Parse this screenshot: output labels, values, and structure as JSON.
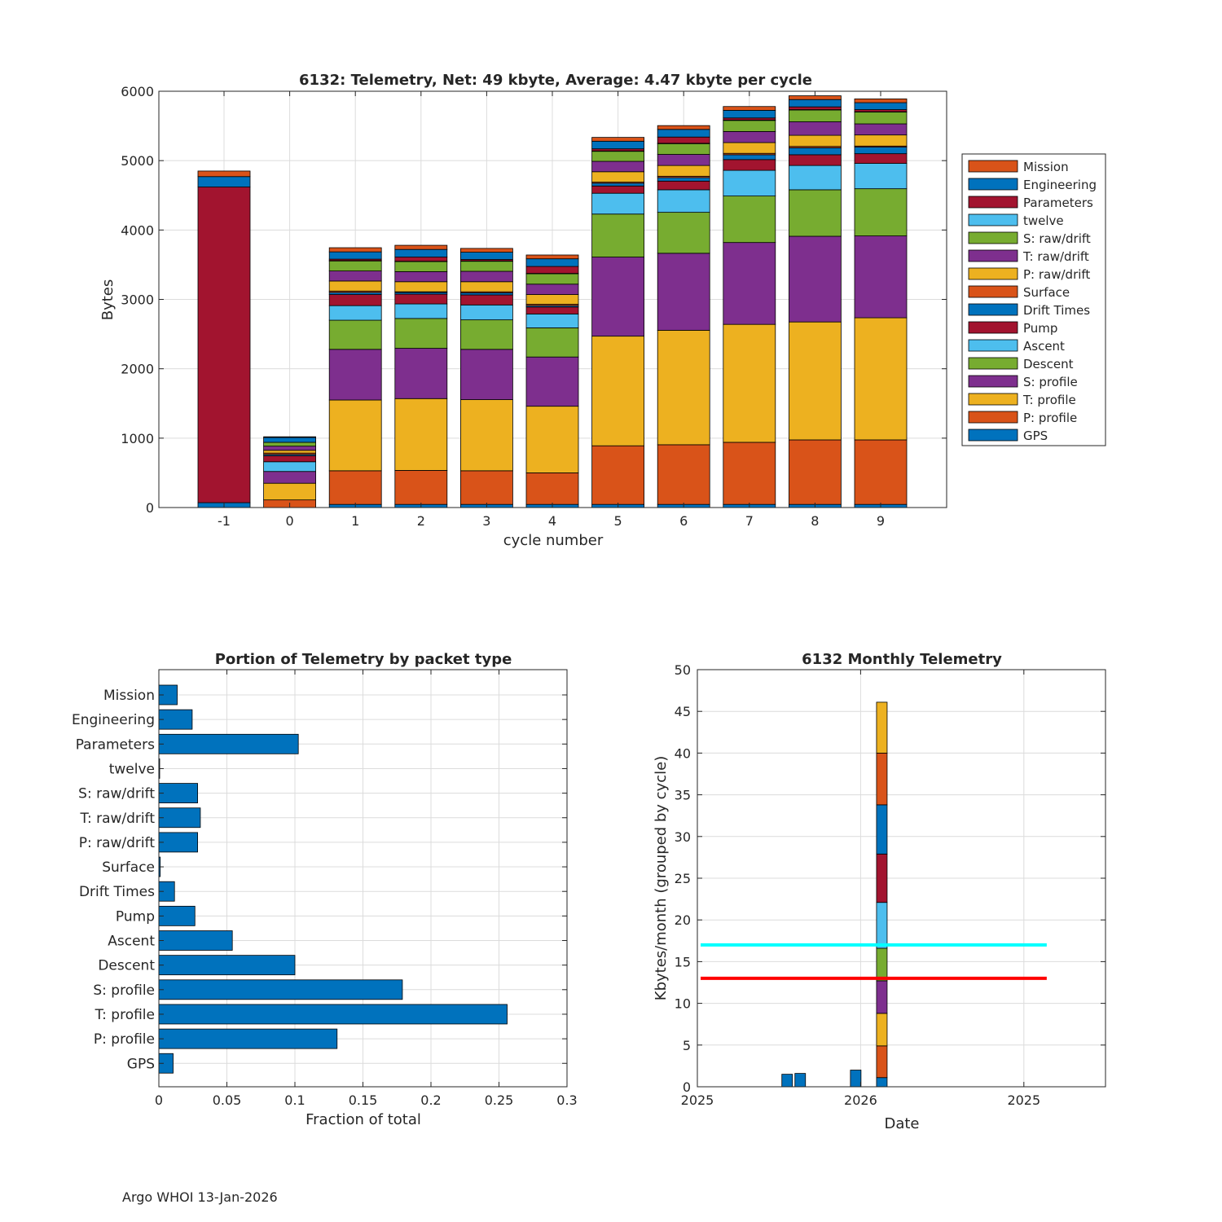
{
  "footer": "Argo WHOI 13-Jan-2026",
  "chart_data": [
    {
      "type": "bar",
      "stacked": true,
      "title": "6132: Telemetry, Net:     49 kbyte,  Average: 4.47 kbyte per cycle",
      "xlabel": "cycle number",
      "ylabel": "Bytes",
      "ylim": [
        0,
        6000
      ],
      "yticks": [
        0,
        1000,
        2000,
        3000,
        4000,
        5000,
        6000
      ],
      "grid": true,
      "legend_position": "right",
      "categories": [
        "-1",
        "0",
        "1",
        "2",
        "3",
        "4",
        "5",
        "6",
        "7",
        "8",
        "9"
      ],
      "series": [
        {
          "name": "GPS",
          "color": "#0072BD",
          "values": [
            70,
            0,
            45,
            45,
            45,
            45,
            45,
            45,
            45,
            45,
            45
          ]
        },
        {
          "name": "P: profile",
          "color": "#D95319",
          "values": [
            0,
            110,
            485,
            490,
            485,
            455,
            845,
            860,
            895,
            930,
            930
          ]
        },
        {
          "name": "T: profile",
          "color": "#EDB120",
          "values": [
            0,
            240,
            1020,
            1035,
            1025,
            960,
            1580,
            1650,
            1700,
            1700,
            1760
          ]
        },
        {
          "name": "S: profile",
          "color": "#7E2F8E",
          "values": [
            0,
            170,
            730,
            725,
            725,
            710,
            1140,
            1110,
            1180,
            1235,
            1180
          ]
        },
        {
          "name": "Descent",
          "color": "#77AC30",
          "values": [
            0,
            0,
            420,
            430,
            425,
            420,
            620,
            590,
            670,
            670,
            680
          ]
        },
        {
          "name": "Ascent",
          "color": "#4DBEEE",
          "values": [
            0,
            140,
            210,
            210,
            215,
            200,
            300,
            325,
            370,
            350,
            365
          ]
        },
        {
          "name": "Pump",
          "color": "#A2142F",
          "values": [
            4550,
            85,
            160,
            140,
            145,
            100,
            105,
            125,
            155,
            155,
            140
          ]
        },
        {
          "name": "Drift Times",
          "color": "#0072BD",
          "values": [
            0,
            20,
            30,
            25,
            30,
            20,
            40,
            50,
            70,
            100,
            95
          ]
        },
        {
          "name": "Surface",
          "color": "#D95319",
          "values": [
            0,
            20,
            20,
            10,
            15,
            20,
            15,
            20,
            20,
            20,
            15
          ]
        },
        {
          "name": "P: raw/drift",
          "color": "#EDB120",
          "values": [
            0,
            40,
            145,
            145,
            145,
            140,
            150,
            155,
            155,
            160,
            160
          ]
        },
        {
          "name": "T: raw/drift",
          "color": "#7E2F8E",
          "values": [
            0,
            60,
            145,
            145,
            150,
            150,
            150,
            160,
            160,
            195,
            160
          ]
        },
        {
          "name": "S: raw/drift",
          "color": "#77AC30",
          "values": [
            0,
            55,
            145,
            145,
            145,
            150,
            145,
            155,
            160,
            170,
            170
          ]
        },
        {
          "name": "twelve",
          "color": "#4DBEEE",
          "values": [
            0,
            0,
            5,
            5,
            5,
            5,
            5,
            5,
            5,
            5,
            5
          ]
        },
        {
          "name": "Parameters",
          "color": "#A2142F",
          "values": [
            0,
            0,
            20,
            60,
            20,
            100,
            30,
            90,
            30,
            40,
            30
          ]
        },
        {
          "name": "Engineering",
          "color": "#0072BD",
          "values": [
            150,
            70,
            105,
            110,
            105,
            110,
            110,
            110,
            110,
            105,
            100
          ]
        },
        {
          "name": "Mission",
          "color": "#D95319",
          "values": [
            80,
            10,
            60,
            60,
            55,
            55,
            55,
            55,
            55,
            55,
            55
          ]
        }
      ],
      "legend_order": [
        "Mission",
        "Engineering",
        "Parameters",
        "twelve",
        "S: raw/drift",
        "T: raw/drift",
        "P: raw/drift",
        "Surface",
        "Drift Times",
        "Pump",
        "Ascent",
        "Descent",
        "S: profile",
        "T: profile",
        "P: profile",
        "GPS"
      ]
    },
    {
      "type": "bar",
      "orientation": "horizontal",
      "title": "Portion of Telemetry by packet type",
      "xlabel": "Fraction of total",
      "xlim": [
        0,
        0.3
      ],
      "xticks": [
        "0",
        "0.05",
        "0.1",
        "0.15",
        "0.2",
        "0.25",
        "0.3"
      ],
      "grid": true,
      "color": "#0072BD",
      "categories": [
        "Mission",
        "Engineering",
        "Parameters",
        "twelve",
        "S: raw/drift",
        "T: raw/drift",
        "P: raw/drift",
        "Surface",
        "Drift Times",
        "Pump",
        "Ascent",
        "Descent",
        "S: profile",
        "T: profile",
        "P: profile",
        "GPS"
      ],
      "values": [
        0.0135,
        0.0245,
        0.1025,
        0.0005,
        0.0285,
        0.0305,
        0.0285,
        0.001,
        0.0115,
        0.0265,
        0.054,
        0.1,
        0.179,
        0.256,
        0.131,
        0.0105
      ]
    },
    {
      "type": "bar",
      "stacked": true,
      "title": "6132 Monthly Telemetry",
      "xlabel": "Date",
      "ylabel": "Kbytes/month (grouped by cycle)",
      "ylim": [
        0,
        50
      ],
      "yticks": [
        0,
        5,
        10,
        15,
        20,
        25,
        30,
        35,
        40,
        45,
        50
      ],
      "xlim": [
        0,
        2.5
      ],
      "xticks": [
        {
          "pos": 0,
          "label": "2025"
        },
        {
          "pos": 1,
          "label": "2026"
        },
        {
          "pos": 2,
          "label": "2025"
        }
      ],
      "grid": true,
      "bars": [
        {
          "x": 0.55,
          "segments": [
            {
              "value": 1.5,
              "color": "#0072BD"
            }
          ]
        },
        {
          "x": 0.63,
          "segments": [
            {
              "value": 1.6,
              "color": "#0072BD"
            }
          ]
        },
        {
          "x": 0.97,
          "segments": [
            {
              "value": 2.0,
              "color": "#0072BD"
            }
          ]
        },
        {
          "x": 1.13,
          "segments": [
            {
              "value": 1.1,
              "color": "#0072BD"
            },
            {
              "value": 3.8,
              "color": "#D95319"
            },
            {
              "value": 3.9,
              "color": "#EDB120"
            },
            {
              "value": 3.9,
              "color": "#7E2F8E"
            },
            {
              "value": 3.9,
              "color": "#77AC30"
            },
            {
              "value": 5.5,
              "color": "#4DBEEE"
            },
            {
              "value": 5.8,
              "color": "#A2142F"
            },
            {
              "value": 5.9,
              "color": "#0072BD"
            },
            {
              "value": 6.2,
              "color": "#D95319"
            },
            {
              "value": 6.1,
              "color": "#EDB120"
            }
          ]
        }
      ],
      "lines": [
        {
          "y": 17,
          "x_start": 0.02,
          "x_end": 2.14,
          "color": "#00FFFF"
        },
        {
          "y": 13,
          "x_start": 0.02,
          "x_end": 2.14,
          "color": "#FF0000"
        }
      ]
    }
  ]
}
